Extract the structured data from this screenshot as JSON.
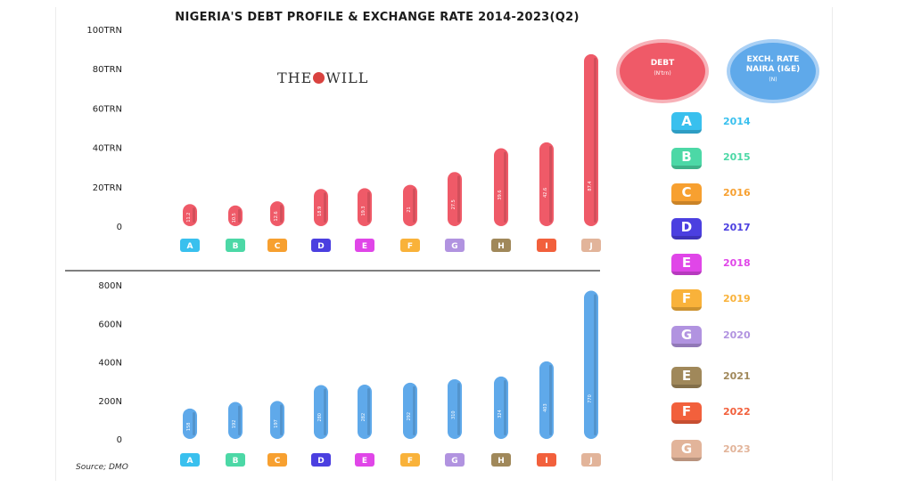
{
  "title": "NIGERIA'S DEBT PROFILE & EXCHANGE RATE 2014-2023(Q2)",
  "watermark": {
    "left": "THE",
    "right": "WILL"
  },
  "source": "Source; DMO",
  "debt_circle": {
    "label": "DEBT",
    "sub": "(N'trn)",
    "color": "#ef5a68"
  },
  "exchange_circle": {
    "label_line1": "EXCH. RATE",
    "label_line2": "NAIRA (I&E)",
    "sub": "(N)",
    "color": "#5fa9ea"
  },
  "legend": [
    {
      "letter": "A",
      "year": "2014",
      "color": "#39c0ee"
    },
    {
      "letter": "B",
      "year": "2015",
      "color": "#4cd8a6"
    },
    {
      "letter": "C",
      "year": "2016",
      "color": "#f7a030"
    },
    {
      "letter": "D",
      "year": "2017",
      "color": "#4b3fe0"
    },
    {
      "letter": "E",
      "year": "2018",
      "color": "#e046e8"
    },
    {
      "letter": "F",
      "year": "2019",
      "color": "#f9b23a"
    },
    {
      "letter": "G",
      "year": "2020",
      "color": "#b193e0"
    },
    {
      "letter": "E",
      "year": "2021",
      "color": "#a0885a"
    },
    {
      "letter": "F",
      "year": "2022",
      "color": "#f2603c"
    },
    {
      "letter": "G",
      "year": "2023",
      "color": "#e2b49a"
    }
  ],
  "chart_data": [
    {
      "type": "bar",
      "title": "",
      "xlabel": "",
      "ylabel": "",
      "categories": [
        "A",
        "B",
        "C",
        "D",
        "E",
        "F",
        "G",
        "H",
        "I",
        "J"
      ],
      "category_colors": [
        "#39c0ee",
        "#4cd8a6",
        "#f7a030",
        "#4b3fe0",
        "#e046e8",
        "#f9b23a",
        "#b193e0",
        "#a0885a",
        "#f2603c",
        "#e2b49a"
      ],
      "values": [
        11.2,
        10.5,
        12.6,
        18.9,
        19.3,
        21.0,
        27.5,
        39.6,
        42.6,
        87.4
      ],
      "ylim": [
        0,
        100
      ],
      "yticks": [
        0,
        20,
        40,
        60,
        80,
        100
      ],
      "ytick_labels": [
        "0",
        "20TRN",
        "40TRN",
        "60TRN",
        "80TRN",
        "100TRN"
      ],
      "bar_color": "#ef5a68",
      "grid": false
    },
    {
      "type": "bar",
      "title": "",
      "xlabel": "",
      "ylabel": "",
      "categories": [
        "A",
        "B",
        "C",
        "D",
        "E",
        "F",
        "G",
        "H",
        "I",
        "J"
      ],
      "category_colors": [
        "#39c0ee",
        "#4cd8a6",
        "#f7a030",
        "#4b3fe0",
        "#e046e8",
        "#f9b23a",
        "#b193e0",
        "#a0885a",
        "#f2603c",
        "#e2b49a"
      ],
      "values": [
        158,
        192,
        197,
        280,
        282,
        292,
        310,
        324,
        403,
        770
      ],
      "ylim": [
        0,
        800
      ],
      "yticks": [
        0,
        200,
        400,
        600,
        800
      ],
      "ytick_labels": [
        "0",
        "200N",
        "400N",
        "600N",
        "800N"
      ],
      "bar_color": "#5fa9ea",
      "grid": false
    }
  ]
}
